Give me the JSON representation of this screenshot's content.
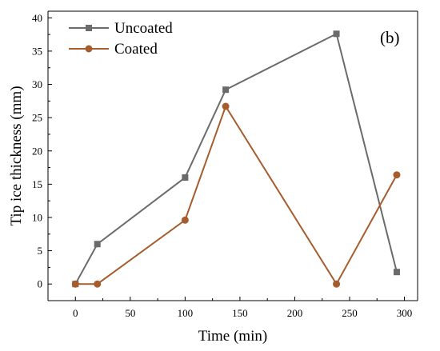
{
  "chart_data": {
    "type": "line",
    "panel_label": "(b)",
    "xlabel": "Time (min)",
    "ylabel": "Tip ice thickness (mm)",
    "xlim": [
      -25,
      312
    ],
    "ylim": [
      -2.5,
      41
    ],
    "xticks": [
      0,
      50,
      100,
      150,
      200,
      250,
      300
    ],
    "yticks": [
      0,
      5,
      10,
      15,
      20,
      25,
      30,
      35,
      40
    ],
    "legend_position": "top-left",
    "grid": false,
    "series": [
      {
        "name": "Uncoated",
        "color": "#6b6b6b",
        "marker": "square",
        "x": [
          0,
          20,
          100,
          137,
          238,
          293
        ],
        "y": [
          0,
          6,
          16,
          29.2,
          37.6,
          1.8
        ]
      },
      {
        "name": "Coated",
        "color": "#a65c2c",
        "marker": "circle",
        "x": [
          0,
          20,
          100,
          137,
          238,
          293
        ],
        "y": [
          0,
          0,
          9.6,
          26.7,
          0,
          16.4
        ]
      }
    ]
  }
}
